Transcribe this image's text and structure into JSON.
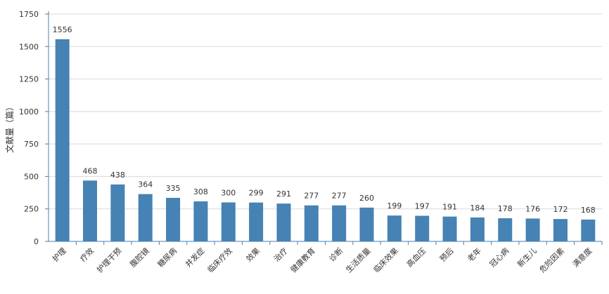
{
  "chart_data": {
    "type": "bar",
    "ylabel": "文献量（篇）",
    "ylim": [
      0,
      1750
    ],
    "yticks": [
      0,
      250,
      500,
      750,
      1000,
      1250,
      1500,
      1750
    ],
    "grid": true,
    "categories": [
      "护理",
      "疗效",
      "护理干预",
      "腹腔镜",
      "糖尿病",
      "并发症",
      "临床疗效",
      "效果",
      "治疗",
      "健康教育",
      "诊断",
      "生活质量",
      "临床效果",
      "高血压",
      "预后",
      "老年",
      "冠心病",
      "新生儿",
      "危险因素",
      "满意度"
    ],
    "values": [
      1556,
      468,
      438,
      364,
      335,
      308,
      300,
      299,
      291,
      277,
      277,
      260,
      199,
      197,
      191,
      184,
      178,
      176,
      172,
      168
    ],
    "data_labels": [
      "1556",
      "468",
      "438",
      "364",
      "335",
      "308",
      "300",
      "299",
      "291",
      "277",
      "277",
      "260",
      "199",
      "197",
      "191",
      "184",
      "178",
      "176",
      "172",
      "168"
    ],
    "colors": {
      "bar": "#4682b4",
      "grid": "#d9d9d9",
      "axis": "#4682b4"
    }
  }
}
